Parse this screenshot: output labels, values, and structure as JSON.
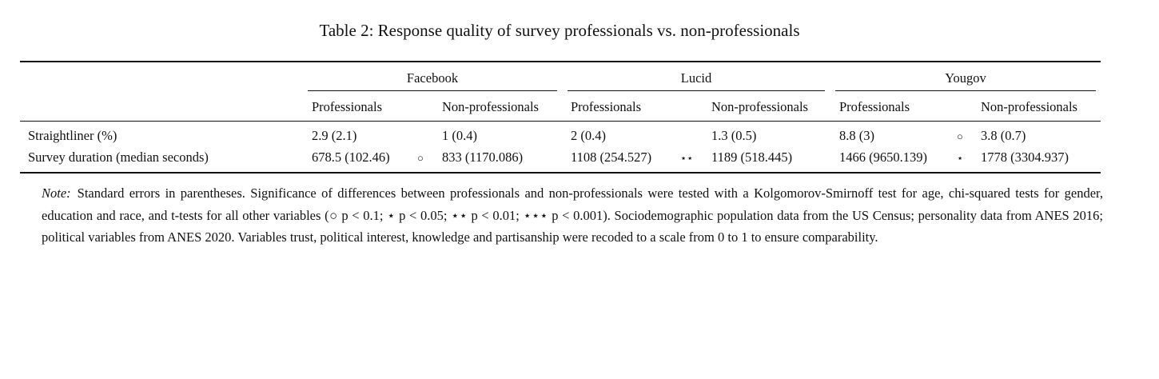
{
  "caption": "Table 2: Response quality of survey professionals vs. non-professionals",
  "table": {
    "groups": [
      "Facebook",
      "Lucid",
      "Yougov"
    ],
    "subheaders": [
      "Professionals",
      "Non-professionals",
      "Professionals",
      "Non-professionals",
      "Professionals",
      "Non-professionals"
    ],
    "rows": [
      {
        "label": "Straightliner (%)",
        "values": [
          "2.9 (2.1)",
          "1 (0.4)",
          "2 (0.4)",
          "1.3 (0.5)",
          "8.8 (3)",
          "3.8 (0.7)"
        ],
        "sig": [
          "",
          "",
          "○"
        ]
      },
      {
        "label": "Survey duration (median seconds)",
        "values": [
          "678.5 (102.46)",
          "833 (1170.086)",
          "1108 (254.527)",
          "1189 (518.445)",
          "1466 (9650.139)",
          "1778 (3304.937)"
        ],
        "sig": [
          "○",
          "⋆⋆",
          "⋆"
        ]
      }
    ]
  },
  "note": {
    "label": "Note:",
    "text": "Standard errors in parentheses. Significance of differences between professionals and non-professionals were tested with a Kolgomorov-Smirnoff test for age, chi-squared tests for gender, education and race, and t-tests for all other variables (○ p < 0.1; ⋆ p < 0.05; ⋆⋆ p < 0.01; ⋆⋆⋆ p < 0.001). Sociodemographic population data from the US Census; personality data from ANES 2016; political variables from ANES 2020. Variables trust, political interest, knowledge and partisanship were recoded to a scale from 0 to 1 to ensure comparability."
  }
}
